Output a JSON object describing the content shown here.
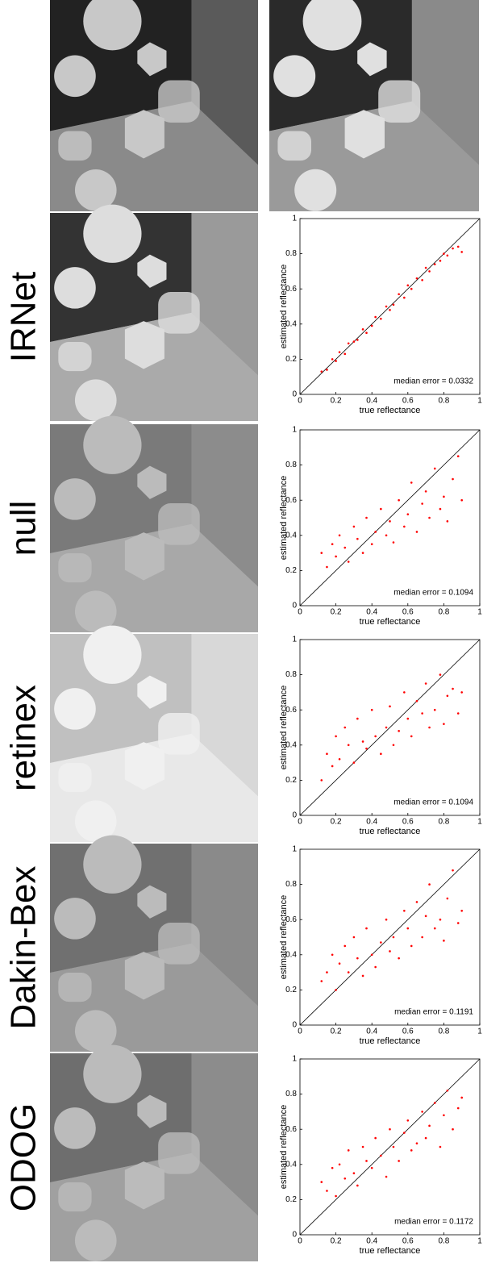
{
  "chart_data": [
    {
      "type": "scatter",
      "method": "IRNet",
      "xlabel": "true reflectance",
      "ylabel": "estimated reflectance",
      "annotation": "median error = 0.0332",
      "color": "#ff0000",
      "xlim": [
        0,
        1
      ],
      "ylim": [
        0,
        1
      ],
      "xticks": [
        0,
        0.2,
        0.4,
        0.6,
        0.8,
        1
      ],
      "yticks": [
        0,
        0.2,
        0.4,
        0.6,
        0.8,
        1
      ],
      "x": [
        0.12,
        0.15,
        0.18,
        0.2,
        0.22,
        0.25,
        0.27,
        0.3,
        0.32,
        0.35,
        0.37,
        0.4,
        0.42,
        0.45,
        0.48,
        0.5,
        0.52,
        0.55,
        0.58,
        0.6,
        0.62,
        0.65,
        0.68,
        0.7,
        0.72,
        0.75,
        0.78,
        0.8,
        0.82,
        0.85,
        0.88,
        0.9
      ],
      "values": [
        0.13,
        0.14,
        0.2,
        0.19,
        0.24,
        0.23,
        0.29,
        0.3,
        0.31,
        0.37,
        0.35,
        0.39,
        0.44,
        0.43,
        0.5,
        0.48,
        0.51,
        0.57,
        0.55,
        0.62,
        0.6,
        0.66,
        0.65,
        0.72,
        0.7,
        0.74,
        0.76,
        0.8,
        0.79,
        0.83,
        0.84,
        0.81
      ]
    },
    {
      "type": "scatter",
      "method": "null",
      "xlabel": "true reflectance",
      "ylabel": "estimated reflectance",
      "annotation": "median error = 0.1094",
      "color": "#ff0000",
      "xlim": [
        0,
        1
      ],
      "ylim": [
        0,
        1
      ],
      "xticks": [
        0,
        0.2,
        0.4,
        0.6,
        0.8,
        1
      ],
      "yticks": [
        0,
        0.2,
        0.4,
        0.6,
        0.8,
        1
      ],
      "x": [
        0.12,
        0.15,
        0.18,
        0.2,
        0.22,
        0.25,
        0.27,
        0.3,
        0.32,
        0.35,
        0.37,
        0.4,
        0.42,
        0.45,
        0.48,
        0.5,
        0.52,
        0.55,
        0.58,
        0.6,
        0.62,
        0.65,
        0.68,
        0.7,
        0.72,
        0.75,
        0.78,
        0.8,
        0.82,
        0.85,
        0.88,
        0.9
      ],
      "values": [
        0.3,
        0.22,
        0.35,
        0.28,
        0.4,
        0.33,
        0.25,
        0.45,
        0.38,
        0.3,
        0.5,
        0.35,
        0.42,
        0.55,
        0.4,
        0.48,
        0.36,
        0.6,
        0.45,
        0.52,
        0.7,
        0.42,
        0.58,
        0.65,
        0.5,
        0.78,
        0.55,
        0.62,
        0.48,
        0.72,
        0.85,
        0.6
      ]
    },
    {
      "type": "scatter",
      "method": "retinex",
      "xlabel": "true reflectance",
      "ylabel": "estimated reflectance",
      "annotation": "median error = 0.1094",
      "color": "#ff0000",
      "xlim": [
        0,
        1
      ],
      "ylim": [
        0,
        1
      ],
      "xticks": [
        0,
        0.2,
        0.4,
        0.6,
        0.8,
        1
      ],
      "yticks": [
        0,
        0.2,
        0.4,
        0.6,
        0.8,
        1
      ],
      "x": [
        0.12,
        0.15,
        0.18,
        0.2,
        0.22,
        0.25,
        0.27,
        0.3,
        0.32,
        0.35,
        0.37,
        0.4,
        0.42,
        0.45,
        0.48,
        0.5,
        0.52,
        0.55,
        0.58,
        0.6,
        0.62,
        0.65,
        0.68,
        0.7,
        0.72,
        0.75,
        0.78,
        0.8,
        0.82,
        0.85,
        0.88,
        0.9
      ],
      "values": [
        0.2,
        0.35,
        0.28,
        0.45,
        0.32,
        0.5,
        0.4,
        0.3,
        0.55,
        0.42,
        0.38,
        0.6,
        0.45,
        0.35,
        0.5,
        0.62,
        0.4,
        0.48,
        0.7,
        0.55,
        0.45,
        0.65,
        0.58,
        0.75,
        0.5,
        0.6,
        0.8,
        0.52,
        0.68,
        0.72,
        0.58,
        0.7
      ]
    },
    {
      "type": "scatter",
      "method": "Dakin-Bex",
      "xlabel": "true reflectance",
      "ylabel": "estimated reflectance",
      "annotation": "median error = 0.1191",
      "color": "#ff0000",
      "xlim": [
        0,
        1
      ],
      "ylim": [
        0,
        1
      ],
      "xticks": [
        0,
        0.2,
        0.4,
        0.6,
        0.8,
        1
      ],
      "yticks": [
        0,
        0.2,
        0.4,
        0.6,
        0.8,
        1
      ],
      "x": [
        0.12,
        0.15,
        0.18,
        0.2,
        0.22,
        0.25,
        0.27,
        0.3,
        0.32,
        0.35,
        0.37,
        0.4,
        0.42,
        0.45,
        0.48,
        0.5,
        0.52,
        0.55,
        0.58,
        0.6,
        0.62,
        0.65,
        0.68,
        0.7,
        0.72,
        0.75,
        0.78,
        0.8,
        0.82,
        0.85,
        0.88,
        0.9
      ],
      "values": [
        0.25,
        0.3,
        0.4,
        0.2,
        0.35,
        0.45,
        0.3,
        0.5,
        0.38,
        0.28,
        0.55,
        0.4,
        0.33,
        0.47,
        0.6,
        0.42,
        0.5,
        0.38,
        0.65,
        0.55,
        0.45,
        0.7,
        0.5,
        0.62,
        0.8,
        0.55,
        0.6,
        0.48,
        0.72,
        0.88,
        0.58,
        0.65
      ]
    },
    {
      "type": "scatter",
      "method": "ODOG",
      "xlabel": "true reflectance",
      "ylabel": "estimated reflectance",
      "annotation": "median error = 0.1172",
      "color": "#ff0000",
      "xlim": [
        0,
        1
      ],
      "ylim": [
        0,
        1
      ],
      "xticks": [
        0,
        0.2,
        0.4,
        0.6,
        0.8,
        1
      ],
      "yticks": [
        0,
        0.2,
        0.4,
        0.6,
        0.8,
        1
      ],
      "x": [
        0.12,
        0.15,
        0.18,
        0.2,
        0.22,
        0.25,
        0.27,
        0.3,
        0.32,
        0.35,
        0.37,
        0.4,
        0.42,
        0.45,
        0.48,
        0.5,
        0.52,
        0.55,
        0.58,
        0.6,
        0.62,
        0.65,
        0.68,
        0.7,
        0.72,
        0.75,
        0.78,
        0.8,
        0.82,
        0.85,
        0.88,
        0.9
      ],
      "values": [
        0.3,
        0.25,
        0.38,
        0.22,
        0.4,
        0.32,
        0.48,
        0.35,
        0.28,
        0.5,
        0.42,
        0.38,
        0.55,
        0.45,
        0.33,
        0.6,
        0.5,
        0.42,
        0.58,
        0.65,
        0.48,
        0.52,
        0.7,
        0.55,
        0.62,
        0.75,
        0.5,
        0.68,
        0.82,
        0.6,
        0.72,
        0.78
      ]
    }
  ]
}
